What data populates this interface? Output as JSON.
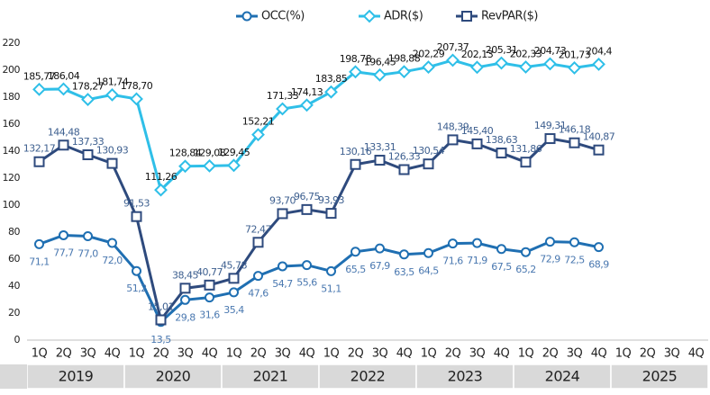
{
  "chart_data": {
    "type": "line",
    "categories": [
      "1Q",
      "2Q",
      "3Q",
      "4Q",
      "1Q",
      "2Q",
      "3Q",
      "4Q",
      "1Q",
      "2Q",
      "3Q",
      "4Q",
      "1Q",
      "2Q",
      "3Q",
      "4Q",
      "1Q",
      "2Q",
      "3Q",
      "4Q",
      "1Q",
      "2Q",
      "3Q",
      "4Q",
      "1Q",
      "2Q",
      "3Q",
      "4Q"
    ],
    "year_groups": [
      "2019",
      "2020",
      "2021",
      "2022",
      "2023",
      "2024",
      "2025"
    ],
    "ylim": [
      0,
      220
    ],
    "yticks": [
      0,
      20,
      40,
      60,
      80,
      100,
      120,
      140,
      160,
      180,
      200,
      220
    ],
    "series": [
      {
        "name": "OCC(%)",
        "color": "#1f6fb2",
        "marker": "circle",
        "label_color": "#4a78b0",
        "values": [
          71.1,
          77.7,
          77.0,
          72.0,
          51.2,
          13.5,
          29.8,
          31.6,
          35.4,
          47.6,
          54.7,
          55.6,
          51.1,
          65.5,
          67.9,
          63.5,
          64.5,
          71.6,
          71.9,
          67.5,
          65.2,
          72.9,
          72.5,
          68.9,
          null,
          null,
          null,
          null
        ],
        "value_labels": [
          "71,1",
          "77,7",
          "77,0",
          "72,0",
          "51,2",
          "13,5",
          "29,8",
          "31,6",
          "35,4",
          "47,6",
          "54,7",
          "55,6",
          "51,1",
          "65,5",
          "67,9",
          "63,5",
          "64,5",
          "71,6",
          "71,9",
          "67,5",
          "65,2",
          "72,9",
          "72,5",
          "68,9",
          null,
          null,
          null,
          null
        ]
      },
      {
        "name": "ADR($)",
        "color": "#2fbfe8",
        "marker": "diamond",
        "label_color": "#111111",
        "values": [
          185.77,
          186.04,
          178.27,
          181.74,
          178.7,
          111.26,
          128.84,
          129.08,
          129.45,
          152.21,
          171.33,
          174.13,
          183.85,
          198.78,
          196.45,
          198.88,
          202.29,
          207.37,
          202.13,
          205.31,
          202.33,
          204.73,
          201.73,
          204.4,
          null,
          null,
          null,
          null
        ],
        "value_labels": [
          "185,77",
          "186,04",
          "178,27",
          "181,74",
          "178,70",
          "111,26",
          "128,84",
          "129,08",
          "129,45",
          "152,21",
          "171,33",
          "174,13",
          "183,85",
          "198,78",
          "196,45",
          "198,88",
          "202,29",
          "207,37",
          "202,13",
          "205,31",
          "202,33",
          "204,73",
          "201,73",
          "204,4",
          null,
          null,
          null,
          null
        ]
      },
      {
        "name": "RevPAR($)",
        "color": "#2e4a7d",
        "marker": "square",
        "label_color": "#3d5f8f",
        "values": [
          132.17,
          144.48,
          137.33,
          130.93,
          91.53,
          15.01,
          38.45,
          40.77,
          45.78,
          72.47,
          93.7,
          96.75,
          93.93,
          130.16,
          133.31,
          126.33,
          130.54,
          148.39,
          145.4,
          138.63,
          131.86,
          149.31,
          146.18,
          140.87,
          null,
          null,
          null,
          null
        ],
        "value_labels": [
          "132,17",
          "144,48",
          "137,33",
          "130,93",
          "91,53",
          "15,01",
          "38,45",
          "40,77",
          "45,78",
          "72,47",
          "93,70",
          "96,75",
          "93,93",
          "130,16",
          "133,31",
          "126,33",
          "130,54",
          "148,39",
          "145,40",
          "138,63",
          "131,86",
          "149,31",
          "146,18",
          "140,87",
          null,
          null,
          null,
          null
        ]
      }
    ]
  }
}
